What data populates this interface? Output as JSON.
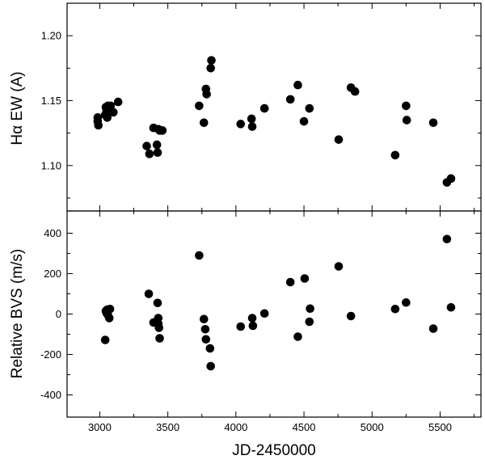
{
  "chart_data": [
    {
      "type": "scatter",
      "title": "",
      "xlabel": "",
      "ylabel": "Hα EW (A)",
      "xlim": [
        2760,
        5800
      ],
      "ylim": [
        1.065,
        1.225
      ],
      "grid": false,
      "x_ticks": [
        3000,
        3500,
        4000,
        4500,
        5000,
        5500
      ],
      "y_ticks": [
        "1.10",
        "1.15",
        "1.20"
      ],
      "y_tick_values": [
        1.1,
        1.15,
        1.2
      ],
      "y_minor_ticks": [
        1.075,
        1.125,
        1.175
      ],
      "series": [
        {
          "x": [
            2985,
            2985,
            2990,
            3040,
            3045,
            3050,
            3055,
            3060,
            3065,
            3080,
            3100,
            3135,
            3345,
            3365,
            3395,
            3420,
            3425,
            3430,
            3440,
            3460,
            3730,
            3765,
            3780,
            3785,
            3815,
            3820,
            4035,
            4115,
            4120,
            4210,
            4400,
            4455,
            4500,
            4540,
            4755,
            4845,
            4875,
            5170,
            5250,
            5255,
            5450,
            5550,
            5580
          ],
          "y": [
            1.137,
            1.134,
            1.131,
            1.139,
            1.145,
            1.142,
            1.137,
            1.146,
            1.143,
            1.146,
            1.141,
            1.149,
            1.115,
            1.109,
            1.129,
            1.116,
            1.11,
            1.128,
            1.127,
            1.127,
            1.146,
            1.133,
            1.159,
            1.155,
            1.175,
            1.181,
            1.132,
            1.136,
            1.13,
            1.144,
            1.151,
            1.162,
            1.134,
            1.144,
            1.12,
            1.16,
            1.157,
            1.108,
            1.146,
            1.135,
            1.133,
            1.087,
            1.09
          ]
        }
      ]
    },
    {
      "type": "scatter",
      "title": "",
      "xlabel": "JD-2450000",
      "ylabel": "Relative BVS (m/s)",
      "xlim": [
        2760,
        5800
      ],
      "ylim": [
        -510,
        510
      ],
      "grid": false,
      "x_ticks": [
        3000,
        3500,
        4000,
        4500,
        5000,
        5500
      ],
      "y_ticks": [
        "-400",
        "-200",
        "0",
        "200",
        "400"
      ],
      "y_tick_values": [
        -400,
        -200,
        0,
        200,
        400
      ],
      "y_minor_ticks": [
        -300,
        -100,
        100,
        300
      ],
      "series": [
        {
          "x": [
            3040,
            3045,
            3050,
            3055,
            3060,
            3070,
            3075,
            3360,
            3395,
            3425,
            3430,
            3430,
            3435,
            3440,
            3730,
            3765,
            3775,
            3780,
            3810,
            3815,
            4035,
            4120,
            4125,
            4210,
            4400,
            4455,
            4505,
            4540,
            4545,
            4755,
            4845,
            5170,
            5250,
            5450,
            5550,
            5580
          ],
          "y": [
            -128,
            15,
            5,
            22,
            -5,
            -20,
            25,
            100,
            -42,
            55,
            -20,
            -48,
            -68,
            -120,
            290,
            -25,
            -75,
            -125,
            -170,
            -258,
            -62,
            -20,
            -58,
            3,
            158,
            -112,
            176,
            -38,
            27,
            236,
            -10,
            25,
            57,
            -72,
            371,
            33
          ]
        }
      ]
    }
  ]
}
